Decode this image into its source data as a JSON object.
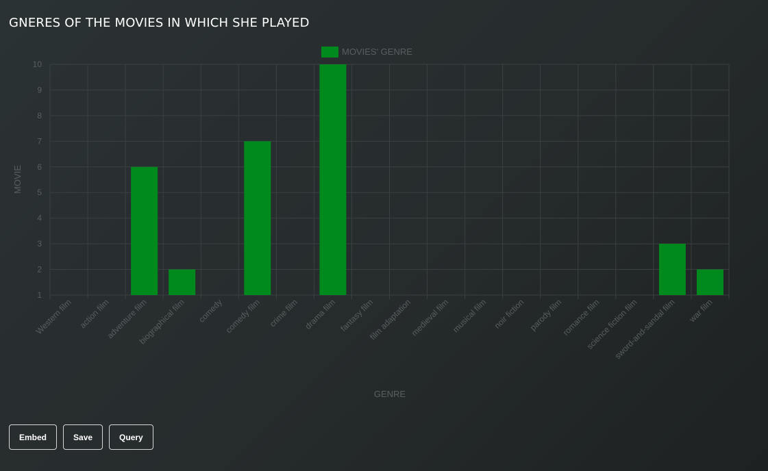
{
  "title": "GNERES OF THE MOVIES IN WHICH SHE PLAYED",
  "buttons": {
    "embed": "Embed",
    "save": "Save",
    "query": "Query"
  },
  "chart_data": {
    "type": "bar",
    "categories": [
      "Western film",
      "action film",
      "adventure film",
      "biographical film",
      "comedy",
      "comedy film",
      "crime film",
      "drama film",
      "fantasy film",
      "film adaptation",
      "medieval film",
      "musical film",
      "noir fiction",
      "parody film",
      "romance film",
      "science fiction film",
      "sword-and-sandal film",
      "war film"
    ],
    "series": [
      {
        "name": "MOVIES' GENRE",
        "values": [
          1,
          1,
          6,
          2,
          1,
          7,
          1,
          10,
          1,
          1,
          1,
          1,
          1,
          1,
          1,
          1,
          3,
          2
        ]
      }
    ],
    "xlabel": "GENRE",
    "ylabel": "MOVIE",
    "ylim": [
      1,
      10
    ],
    "yticks": [
      1,
      2,
      3,
      4,
      5,
      6,
      7,
      8,
      9,
      10
    ],
    "grid": true,
    "legend_position": "top",
    "colors": {
      "bar": "#008a1e",
      "grid": "#3a4142",
      "text": "#585f60"
    }
  }
}
